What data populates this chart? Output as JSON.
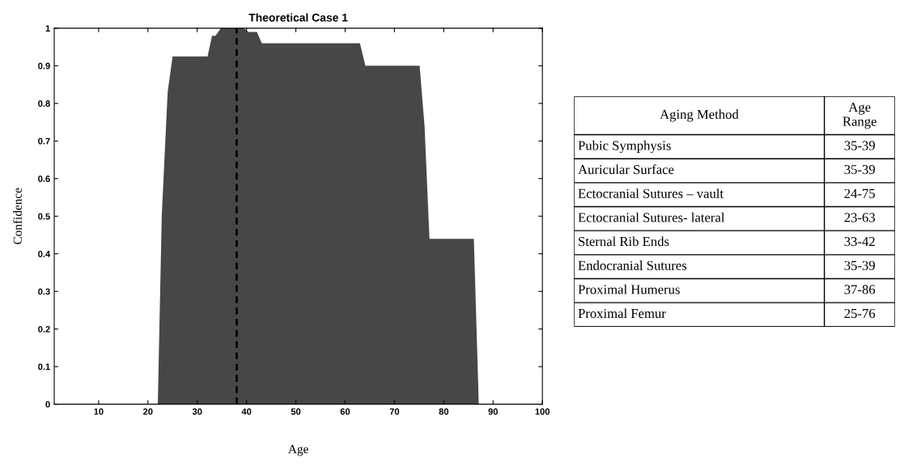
{
  "chart_data": [
    {
      "type": "area",
      "title": "Theoretical Case 1",
      "xlabel": "Age",
      "ylabel": "Confidence",
      "x": [
        22,
        22.8,
        24,
        25,
        32.1,
        33,
        33.7,
        34.8,
        39.4,
        40.4,
        42.1,
        43.1,
        63,
        64.1,
        75.1,
        76.1,
        76.9,
        77.1,
        86.1,
        87.1
      ],
      "series": [
        {
          "color": "#474747",
          "values": [
            0,
            0.5,
            0.83,
            0.925,
            0.925,
            0.98,
            0.98,
            1.0,
            1.0,
            0.99,
            0.99,
            0.96,
            0.96,
            0.9,
            0.9,
            0.74,
            0.5,
            0.44,
            0.44,
            0
          ]
        }
      ],
      "xlim": [
        1,
        100
      ],
      "xticks": [
        10,
        20,
        30,
        40,
        50,
        60,
        70,
        80,
        90,
        100
      ],
      "ylim": [
        0,
        1
      ],
      "yticks": [
        0,
        0.1,
        0.2,
        0.3,
        0.4,
        0.5,
        0.6,
        0.7,
        0.8,
        0.9,
        1
      ],
      "ref_lines": [
        {
          "axis": "x",
          "value": 38,
          "color": "#000000",
          "line_style": "dashed"
        }
      ],
      "grid": false,
      "legend": false
    },
    {
      "type": "other",
      "annotations": [
        "Aging Method",
        "Age\nRange",
        "Pubic Symphysis",
        "35-39",
        "Auricular Surface",
        "35-39",
        "Ectocranial Sutures – vault",
        "24-75",
        "Ectocranial Sutures- lateral",
        "23-63",
        "Sternal Rib Ends",
        "33-42",
        "Endocranial Sutures",
        "35-39",
        "Proximal Humerus",
        "37-86",
        "Proximal Femur",
        "25-76"
      ]
    }
  ]
}
